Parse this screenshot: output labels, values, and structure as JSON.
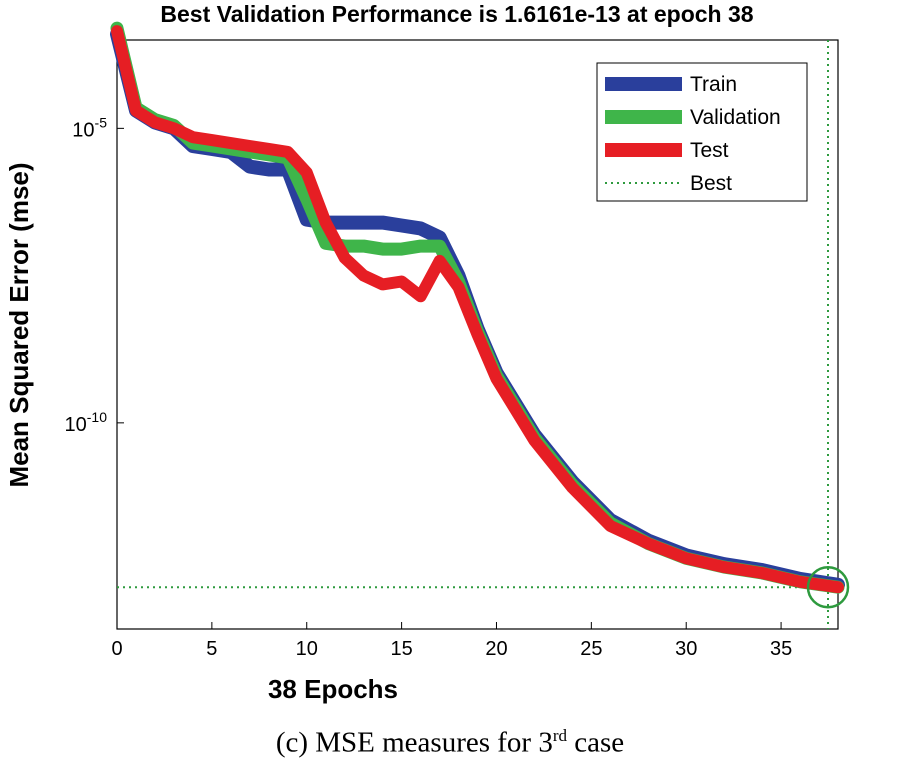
{
  "chart_data": {
    "type": "line",
    "title": "Best Validation Performance is 1.6161e-13 at epoch 38",
    "xlabel": "38 Epochs",
    "ylabel": "Mean Squared Error  (mse)",
    "xlim": [
      0,
      38
    ],
    "ylim_log10": [
      -13.5,
      -3.5
    ],
    "yscale": "log",
    "x_ticks": [
      0,
      5,
      10,
      15,
      20,
      25,
      30,
      35
    ],
    "y_ticks": [
      {
        "value": 1e-05,
        "base": "10",
        "exp": "-5"
      },
      {
        "value": 1e-10,
        "base": "10",
        "exp": "-10"
      }
    ],
    "grid": false,
    "legend_position": "top-right",
    "best": {
      "epoch": 38,
      "mse": 1.6161e-13
    },
    "series": [
      {
        "name": "Train",
        "color": "#2a3f9c",
        "x": [
          0,
          1,
          2,
          3,
          4,
          5,
          6,
          7,
          8,
          9,
          10,
          11,
          12,
          13,
          14,
          15,
          16,
          17,
          18,
          19,
          20,
          22,
          24,
          26,
          28,
          30,
          32,
          34,
          36,
          38
        ],
        "y": [
          0.000398,
          2e-05,
          1.26e-05,
          1e-05,
          5e-06,
          4.47e-06,
          3.98e-06,
          2.24e-06,
          2e-06,
          2e-06,
          2.82e-07,
          2.51e-07,
          2.51e-07,
          2.51e-07,
          2.51e-07,
          2.24e-07,
          2e-07,
          1.41e-07,
          3.16e-08,
          3.98e-09,
          7.08e-10,
          6.31e-11,
          1e-11,
          2.24e-12,
          1e-12,
          5.62e-13,
          3.98e-13,
          3.16e-13,
          2.24e-13,
          1.78e-13
        ]
      },
      {
        "name": "Validation",
        "color": "#3fb54a",
        "x": [
          0,
          1,
          2,
          3,
          4,
          5,
          6,
          7,
          8,
          9,
          10,
          11,
          12,
          13,
          14,
          15,
          16,
          17,
          18,
          19,
          20,
          22,
          24,
          26,
          28,
          30,
          32,
          34,
          36,
          38
        ],
        "y": [
          0.000501,
          2.24e-05,
          1.41e-05,
          1.12e-05,
          5.62e-06,
          5.01e-06,
          4.47e-06,
          3.98e-06,
          3.55e-06,
          3.16e-06,
          6.31e-07,
          1.12e-07,
          1e-07,
          1e-07,
          8.91e-08,
          8.91e-08,
          1e-07,
          1e-07,
          2.51e-08,
          3.55e-09,
          6.31e-10,
          5.62e-11,
          8.91e-12,
          2e-12,
          8.91e-13,
          5.01e-13,
          3.55e-13,
          2.82e-13,
          2e-13,
          1.62e-13
        ]
      },
      {
        "name": "Test",
        "color": "#e61e24",
        "x": [
          0,
          1,
          2,
          3,
          4,
          5,
          6,
          7,
          8,
          9,
          10,
          11,
          12,
          13,
          14,
          15,
          16,
          17,
          18,
          19,
          20,
          22,
          24,
          26,
          28,
          30,
          32,
          34,
          36,
          38
        ],
        "y": [
          0.000447,
          2e-05,
          1.26e-05,
          1e-05,
          7.08e-06,
          6.31e-06,
          5.62e-06,
          5.01e-06,
          4.47e-06,
          3.98e-06,
          1.78e-06,
          2.51e-07,
          6.31e-08,
          3.16e-08,
          2.24e-08,
          2.51e-08,
          1.41e-08,
          5.62e-08,
          2e-08,
          3.16e-09,
          5.62e-10,
          5.01e-11,
          7.94e-12,
          1.78e-12,
          8.91e-13,
          5.01e-13,
          3.55e-13,
          2.82e-13,
          2e-13,
          1.62e-13
        ]
      },
      {
        "name": "Best",
        "color": "#2e9a3e",
        "style": "dotted"
      }
    ]
  },
  "caption": {
    "prefix": "(c) MSE measures for 3",
    "sup": "rd",
    "suffix": " case"
  }
}
